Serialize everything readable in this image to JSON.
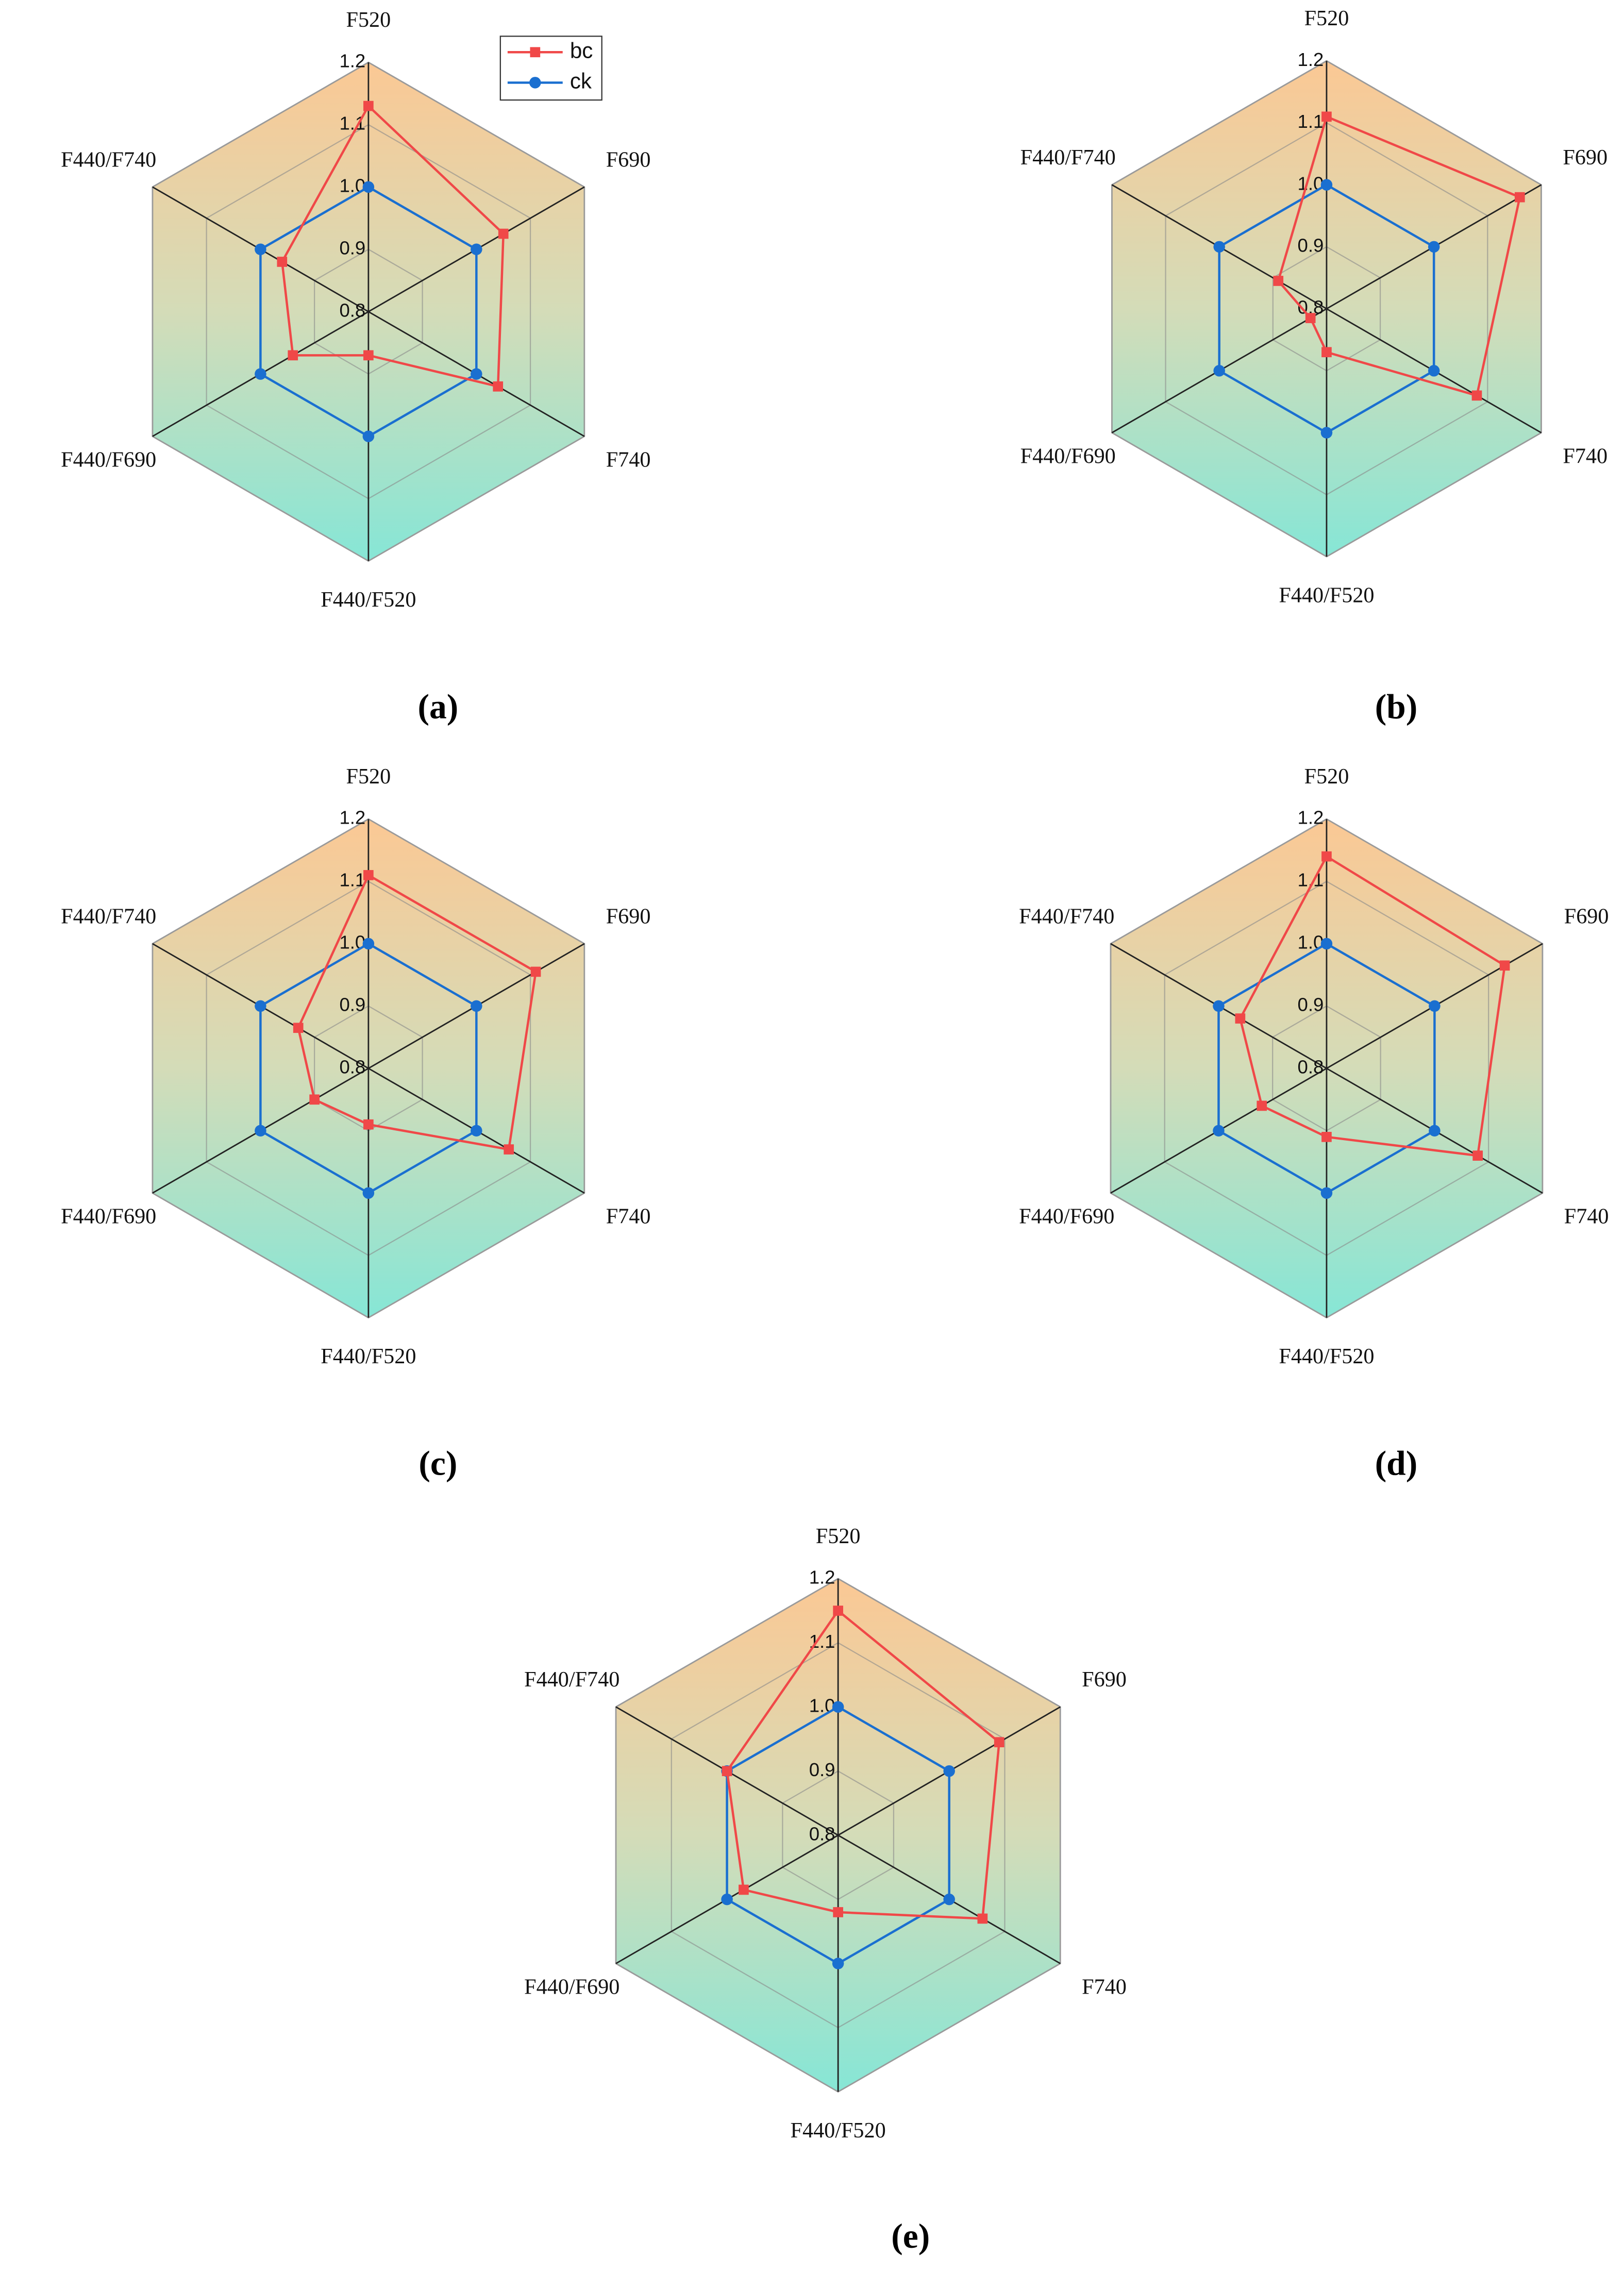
{
  "chart_data": [
    {
      "type": "radar",
      "panel_label": "(a)",
      "categories": [
        "F520",
        "F690",
        "F740",
        "F440/F520",
        "F440/F690",
        "F440/F740"
      ],
      "series": [
        {
          "name": "bc",
          "color": "#f04848",
          "marker": "square",
          "values": [
            1.13,
            1.05,
            1.04,
            0.87,
            0.94,
            0.96
          ]
        },
        {
          "name": "ck",
          "color": "#1a6fd0",
          "marker": "circle",
          "values": [
            1,
            1,
            1,
            1,
            1,
            1
          ]
        }
      ],
      "rlim": [
        0.8,
        1.2
      ],
      "rticks": [
        0.8,
        0.9,
        {
          "value": 1,
          "label": "1.0"
        },
        1.1,
        1.2
      ],
      "legend": "upper right"
    },
    {
      "type": "radar",
      "panel_label": "(b)",
      "categories": [
        "F520",
        "F690",
        "F740",
        "F440/F520",
        "F440/F690",
        "F440/F740"
      ],
      "series": [
        {
          "name": "bc",
          "color": "#f04848",
          "marker": "square",
          "values": [
            1.11,
            1.16,
            1.08,
            0.87,
            0.83,
            0.89
          ]
        },
        {
          "name": "ck",
          "color": "#1a6fd0",
          "marker": "circle",
          "values": [
            1,
            1,
            1,
            1,
            1,
            1
          ]
        }
      ],
      "rlim": [
        0.8,
        1.2
      ],
      "rticks": [
        0.8,
        0.9,
        {
          "value": 1,
          "label": "1.0"
        },
        1.1,
        1.2
      ]
    },
    {
      "type": "radar",
      "panel_label": "(c)",
      "categories": [
        "F520",
        "F690",
        "F740",
        "F440/F520",
        "F440/F690",
        "F440/F740"
      ],
      "series": [
        {
          "name": "bc",
          "color": "#f04848",
          "marker": "square",
          "values": [
            1.11,
            1.11,
            1.06,
            0.89,
            0.9,
            0.93
          ]
        },
        {
          "name": "ck",
          "color": "#1a6fd0",
          "marker": "circle",
          "values": [
            1,
            1,
            1,
            1,
            1,
            1
          ]
        }
      ],
      "rlim": [
        0.8,
        1.2
      ],
      "rticks": [
        0.8,
        0.9,
        {
          "value": 1,
          "label": "1.0"
        },
        1.1,
        1.2
      ]
    },
    {
      "type": "radar",
      "panel_label": "(d)",
      "categories": [
        "F520",
        "F690",
        "F740",
        "F440/F520",
        "F440/F690",
        "F440/F740"
      ],
      "series": [
        {
          "name": "bc",
          "color": "#f04848",
          "marker": "square",
          "values": [
            1.14,
            1.13,
            1.08,
            0.91,
            0.92,
            0.96
          ]
        },
        {
          "name": "ck",
          "color": "#1a6fd0",
          "marker": "circle",
          "values": [
            1,
            1,
            1,
            1,
            1,
            1
          ]
        }
      ],
      "rlim": [
        0.8,
        1.2
      ],
      "rticks": [
        0.8,
        0.9,
        {
          "value": 1,
          "label": "1.0"
        },
        1.1,
        1.2
      ]
    },
    {
      "type": "radar",
      "panel_label": "(e)",
      "categories": [
        "F520",
        "F690",
        "F740",
        "F440/F520",
        "F440/F690",
        "F440/F740"
      ],
      "series": [
        {
          "name": "bc",
          "color": "#f04848",
          "marker": "square",
          "values": [
            1.15,
            1.09,
            1.06,
            0.92,
            0.97,
            1
          ]
        },
        {
          "name": "ck",
          "color": "#1a6fd0",
          "marker": "circle",
          "values": [
            1,
            1,
            1,
            1,
            1,
            1
          ]
        }
      ],
      "rlim": [
        0.8,
        1.2
      ],
      "rticks": [
        0.8,
        0.9,
        {
          "value": 1,
          "label": "1.0"
        },
        1.1,
        1.2
      ]
    }
  ]
}
